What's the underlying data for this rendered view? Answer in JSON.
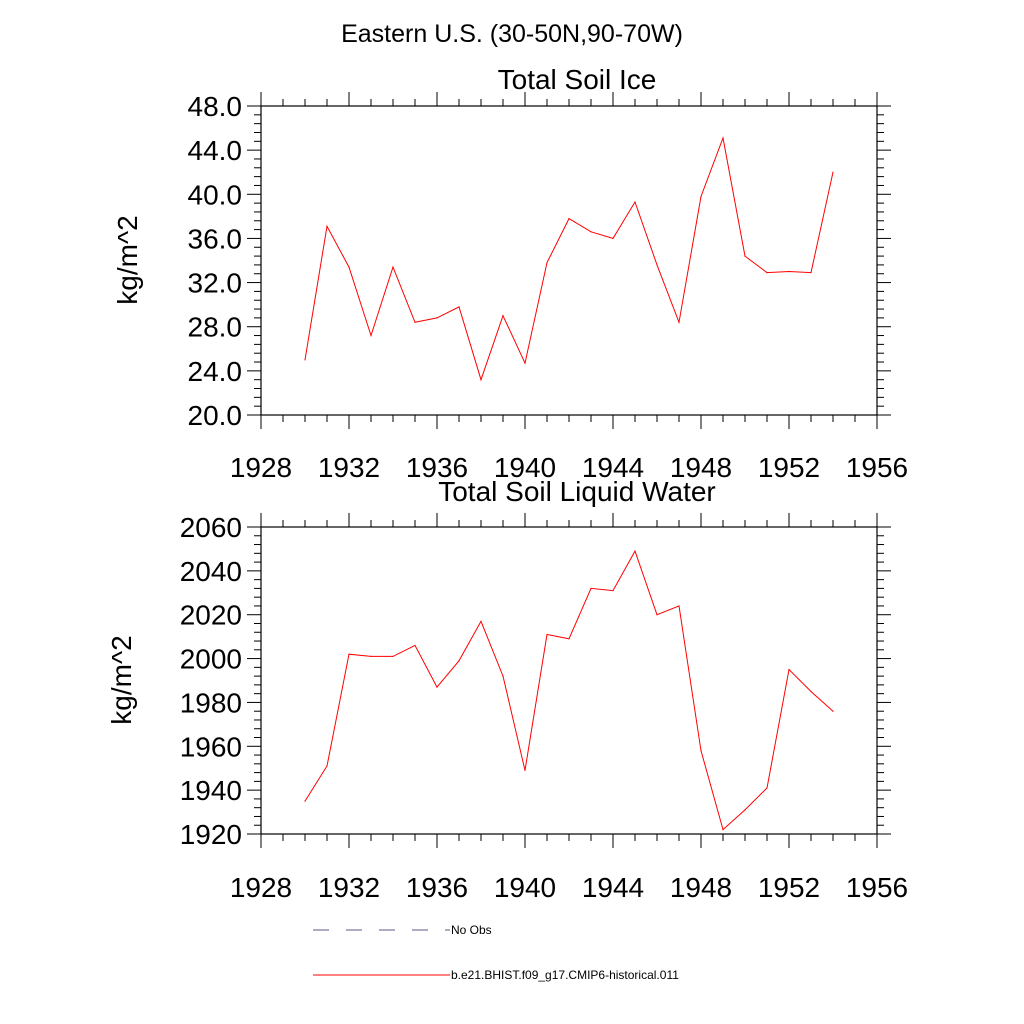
{
  "figure": {
    "main_title": "Eastern U.S. (30-50N,90-70W)"
  },
  "chart_data": [
    {
      "type": "line",
      "title": "Total Soil Ice",
      "xlabel": "",
      "ylabel": "kg/m^2",
      "xlim": [
        1928,
        1956
      ],
      "ylim": [
        20,
        48
      ],
      "x_ticks": [
        "1928",
        "1932",
        "1936",
        "1940",
        "1944",
        "1948",
        "1952",
        "1956"
      ],
      "y_ticks": [
        "20.0",
        "24.0",
        "28.0",
        "32.0",
        "36.0",
        "40.0",
        "44.0",
        "48.0"
      ],
      "x": [
        1930,
        1931,
        1932,
        1933,
        1934,
        1935,
        1936,
        1937,
        1938,
        1939,
        1940,
        1941,
        1942,
        1943,
        1944,
        1945,
        1946,
        1947,
        1948,
        1949,
        1950,
        1951,
        1952,
        1953,
        1954
      ],
      "series": [
        {
          "name": "b.e21.BHIST.f09_g17.CMIP6-historical.011",
          "color": "#ff0000",
          "values": [
            25.0,
            37.1,
            33.4,
            27.2,
            33.4,
            28.4,
            28.8,
            29.8,
            23.2,
            29.0,
            24.7,
            33.8,
            37.8,
            36.6,
            36.0,
            39.3,
            33.6,
            28.4,
            39.8,
            45.1,
            34.4,
            32.9,
            33.0,
            32.9,
            42.0
          ]
        }
      ],
      "grid": false,
      "legend_placement": "bottom"
    },
    {
      "type": "line",
      "title": "Total Soil Liquid Water",
      "xlabel": "",
      "ylabel": "kg/m^2",
      "xlim": [
        1928,
        1956
      ],
      "ylim": [
        1920,
        2060
      ],
      "x_ticks": [
        "1928",
        "1932",
        "1936",
        "1940",
        "1944",
        "1948",
        "1952",
        "1956"
      ],
      "y_ticks": [
        "1920",
        "1940",
        "1960",
        "1980",
        "2000",
        "2020",
        "2040",
        "2060"
      ],
      "x": [
        1930,
        1931,
        1932,
        1933,
        1934,
        1935,
        1936,
        1937,
        1938,
        1939,
        1940,
        1941,
        1942,
        1943,
        1944,
        1945,
        1946,
        1947,
        1948,
        1949,
        1950,
        1951,
        1952,
        1953,
        1954
      ],
      "series": [
        {
          "name": "b.e21.BHIST.f09_g17.CMIP6-historical.011",
          "color": "#ff0000",
          "values": [
            1935,
            1951,
            2002,
            2001,
            2001,
            2006,
            1987,
            1999,
            2017,
            1992,
            1949,
            2011,
            2009,
            2032,
            2031,
            2049,
            2020,
            2024,
            1958,
            1922,
            1931,
            1941,
            1995,
            1985,
            1976
          ]
        }
      ],
      "grid": false,
      "legend_placement": "bottom"
    }
  ],
  "legend": [
    {
      "label": "No Obs",
      "color": "#5a5a8c",
      "style": "dashed"
    },
    {
      "label": "b.e21.BHIST.f09_g17.CMIP6-historical.011",
      "color": "#ff0000",
      "style": "solid"
    }
  ]
}
